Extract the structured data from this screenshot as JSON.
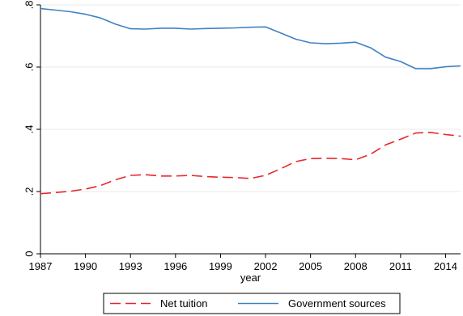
{
  "chart_data": {
    "type": "line",
    "title": "",
    "xlabel": "year",
    "ylabel": "",
    "xlim": [
      1987,
      2015
    ],
    "ylim": [
      0,
      0.8
    ],
    "x_ticks": [
      1987,
      1990,
      1993,
      1996,
      1999,
      2002,
      2005,
      2008,
      2011,
      2014
    ],
    "x_tick_labels": [
      "1987",
      "1990",
      "1993",
      "1996",
      "1999",
      "2002",
      "2005",
      "2008",
      "2011",
      "2014"
    ],
    "y_ticks": [
      0,
      0.2,
      0.4,
      0.6,
      0.8
    ],
    "y_tick_labels": [
      "0",
      ".2",
      ".4",
      ".6",
      ".8"
    ],
    "grid": true,
    "legend_position": "bottom",
    "x": [
      1987,
      1988,
      1989,
      1990,
      1991,
      1992,
      1993,
      1994,
      1995,
      1996,
      1997,
      1998,
      1999,
      2000,
      2001,
      2002,
      2003,
      2004,
      2005,
      2006,
      2007,
      2008,
      2009,
      2010,
      2011,
      2012,
      2013,
      2014,
      2015
    ],
    "series": [
      {
        "name": "Net tuition",
        "color": "#e8262b",
        "dash": "dashed",
        "values": [
          0.193,
          0.197,
          0.201,
          0.208,
          0.219,
          0.238,
          0.252,
          0.254,
          0.25,
          0.25,
          0.252,
          0.248,
          0.246,
          0.245,
          0.242,
          0.252,
          0.273,
          0.296,
          0.306,
          0.307,
          0.306,
          0.302,
          0.32,
          0.35,
          0.368,
          0.388,
          0.39,
          0.383,
          0.378
        ]
      },
      {
        "name": "Government sources",
        "color": "#3f82c2",
        "dash": "solid",
        "values": [
          0.788,
          0.783,
          0.778,
          0.77,
          0.758,
          0.738,
          0.723,
          0.722,
          0.725,
          0.725,
          0.722,
          0.724,
          0.725,
          0.726,
          0.728,
          0.729,
          0.71,
          0.69,
          0.678,
          0.675,
          0.677,
          0.68,
          0.662,
          0.632,
          0.618,
          0.595,
          0.595,
          0.601,
          0.604
        ]
      }
    ]
  }
}
